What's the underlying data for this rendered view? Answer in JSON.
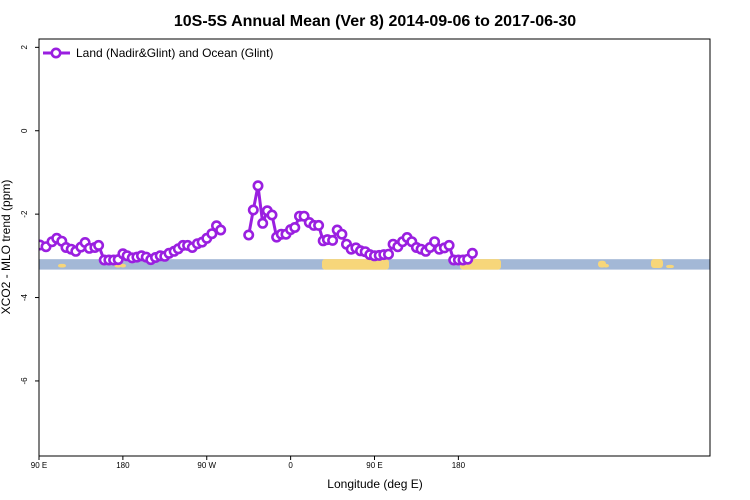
{
  "chart_data": {
    "type": "line",
    "title": "10S-5S Annual Mean (Ver 8)   2014-09-06 to 2017-06-30",
    "xlabel": "Longitude (deg E)",
    "ylabel": "XCO2 - MLO trend (ppm)",
    "xlim": [
      90,
      450
    ],
    "ylim": [
      -7.8,
      2.2
    ],
    "x_ticks": [
      {
        "value": 90,
        "label": "90 E"
      },
      {
        "value": 180,
        "label": "180"
      },
      {
        "value": 270,
        "label": "90 W"
      },
      {
        "value": 360,
        "label": "0"
      },
      {
        "value": 450,
        "label": "90 E"
      },
      {
        "value": 540,
        "label": "180"
      }
    ],
    "y_ticks": [
      {
        "value": 2,
        "label": "2"
      },
      {
        "value": 0,
        "label": "0"
      },
      {
        "value": -2,
        "label": "-2"
      },
      {
        "value": -4,
        "label": "-4"
      },
      {
        "value": -6,
        "label": "-6"
      }
    ],
    "grid": false,
    "legend_position": "top-left",
    "land_strip": {
      "y_top": -3.08,
      "y_bottom": -3.33
    },
    "colors": {
      "series": "#9a1fe0",
      "ocean": "#a3b8d6",
      "land": "#f7d67a"
    },
    "series": [
      {
        "name": "Land (Nadir&Glint) and Ocean (Glint)",
        "points": [
          [
            91,
            -2.74
          ],
          [
            97.5,
            -2.78
          ],
          [
            104,
            -2.66
          ],
          [
            109,
            -2.58
          ],
          [
            114.5,
            -2.65
          ],
          [
            119,
            -2.8
          ],
          [
            124.5,
            -2.84
          ],
          [
            129.5,
            -2.89
          ],
          [
            135,
            -2.79
          ],
          [
            139.5,
            -2.68
          ],
          [
            144,
            -2.82
          ],
          [
            150,
            -2.8
          ],
          [
            154,
            -2.75
          ],
          [
            160,
            -3.1
          ],
          [
            165,
            -3.1
          ],
          [
            170,
            -3.1
          ],
          [
            175,
            -3.09
          ],
          [
            180,
            -2.95
          ],
          [
            184.5,
            -3.0
          ],
          [
            190,
            -3.05
          ],
          [
            195,
            -3.03
          ],
          [
            200,
            -3.0
          ],
          [
            205,
            -3.03
          ],
          [
            210,
            -3.09
          ],
          [
            215,
            -3.04
          ],
          [
            220,
            -3.0
          ],
          [
            225,
            -3.01
          ],
          [
            229.5,
            -2.94
          ],
          [
            235,
            -2.89
          ],
          [
            239.5,
            -2.83
          ],
          [
            244.5,
            -2.75
          ],
          [
            249.5,
            -2.75
          ],
          [
            254.5,
            -2.8
          ],
          [
            260,
            -2.71
          ],
          [
            265,
            -2.67
          ],
          [
            270,
            -2.58
          ],
          [
            275.5,
            -2.47
          ],
          [
            280.5,
            -2.28
          ],
          [
            285,
            -2.38
          ],
          null,
          [
            315,
            -2.5
          ],
          [
            320,
            -1.9
          ],
          [
            325,
            -1.32
          ],
          [
            330,
            -2.22
          ],
          [
            335,
            -1.92
          ],
          [
            340,
            -2.02
          ],
          [
            345,
            -2.55
          ],
          [
            350,
            -2.48
          ],
          [
            355,
            -2.48
          ],
          [
            360,
            -2.37
          ],
          [
            364.5,
            -2.32
          ],
          [
            369.5,
            -2.05
          ],
          [
            374.5,
            -2.05
          ],
          [
            380,
            -2.2
          ],
          [
            385,
            -2.27
          ],
          [
            390,
            -2.27
          ],
          [
            395,
            -2.64
          ],
          [
            399.5,
            -2.61
          ],
          [
            405,
            -2.63
          ],
          [
            410,
            -2.38
          ],
          [
            415,
            -2.48
          ],
          [
            420,
            -2.72
          ],
          [
            425,
            -2.84
          ],
          [
            430,
            -2.81
          ],
          [
            435,
            -2.88
          ],
          [
            440,
            -2.9
          ],
          [
            445,
            -2.97
          ],
          [
            450,
            -3.0
          ],
          [
            455,
            -2.99
          ],
          [
            460,
            -2.97
          ],
          [
            465,
            -2.96
          ],
          [
            470,
            -2.72
          ],
          [
            475,
            -2.78
          ],
          [
            480,
            -2.66
          ],
          [
            485,
            -2.56
          ],
          [
            490,
            -2.66
          ],
          [
            495,
            -2.8
          ],
          [
            500,
            -2.84
          ],
          [
            505,
            -2.89
          ],
          [
            509.5,
            -2.8
          ],
          [
            514.5,
            -2.66
          ],
          [
            519.5,
            -2.84
          ],
          [
            525,
            -2.81
          ],
          [
            530,
            -2.75
          ],
          [
            535,
            -3.1
          ],
          [
            540,
            -3.1
          ],
          [
            545,
            -3.1
          ],
          [
            550,
            -3.08
          ],
          [
            555,
            -2.94
          ]
        ]
      }
    ]
  }
}
